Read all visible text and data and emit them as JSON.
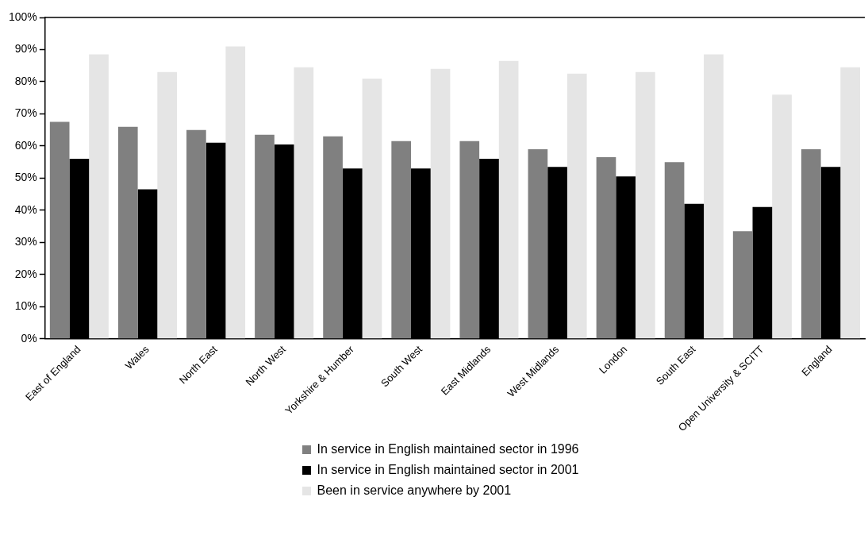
{
  "chart_data": {
    "type": "bar",
    "categories": [
      "East of England",
      "Wales",
      "North East",
      "North West",
      "Yorkshire & Humber",
      "South West",
      "East Midlands",
      "West Midlands",
      "London",
      "South East",
      "Open University & SCITT",
      "England"
    ],
    "series": [
      {
        "name": "In service in English maintained sector in 1996",
        "color": "#808080",
        "values": [
          67.5,
          66,
          65,
          63.5,
          63,
          61.5,
          61.5,
          59,
          56.5,
          55,
          33.5,
          59
        ]
      },
      {
        "name": "In service in English maintained sector in 2001",
        "color": "#000000",
        "values": [
          56,
          46.5,
          61,
          60.5,
          53,
          53,
          56,
          53.5,
          50.5,
          42,
          41,
          53.5
        ]
      },
      {
        "name": "Been in service anywhere by 2001",
        "color": "#e5e5e5",
        "values": [
          88.5,
          83,
          91,
          84.5,
          81,
          84,
          86.5,
          82.5,
          83,
          88.5,
          76,
          84.5
        ]
      }
    ],
    "ylim": [
      0,
      100
    ],
    "yticks": [
      {
        "value": 0,
        "label": "0%"
      },
      {
        "value": 10,
        "label": "10%"
      },
      {
        "value": 20,
        "label": "20%"
      },
      {
        "value": 30,
        "label": "30%"
      },
      {
        "value": 40,
        "label": "40%"
      },
      {
        "value": 50,
        "label": "50%"
      },
      {
        "value": 60,
        "label": "60%"
      },
      {
        "value": 70,
        "label": "70%"
      },
      {
        "value": 80,
        "label": "80%"
      },
      {
        "value": 90,
        "label": "90%"
      },
      {
        "value": 100,
        "label": "100%"
      }
    ],
    "grid": false,
    "legend": "bottom"
  }
}
